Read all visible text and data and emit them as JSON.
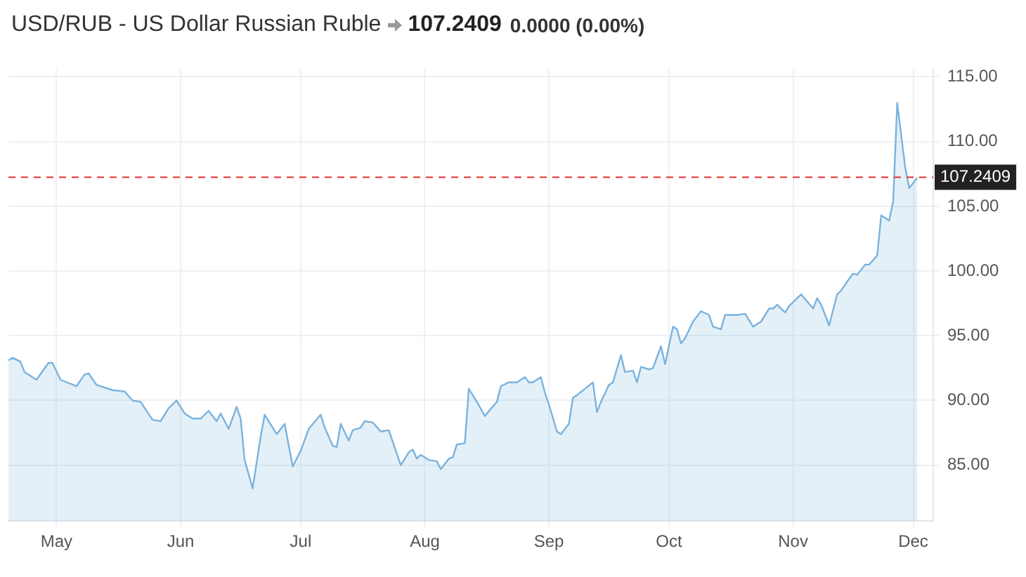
{
  "chart_data": {
    "type": "area",
    "title": "USD/RUB - US Dollar Russian Ruble",
    "annotations": [
      "107.2409",
      "0.0000 (0.00%)"
    ],
    "x": [
      "--04-19",
      "--04-20",
      "--04-22",
      "--04-23",
      "--04-26",
      "--04-29",
      "--04-30",
      "--05-02",
      "--05-06",
      "--05-08",
      "--05-09",
      "--05-11",
      "--05-15",
      "--05-18",
      "--05-20",
      "--05-22",
      "--05-25",
      "--05-27",
      "--05-29",
      "--05-31",
      "--06-02",
      "--06-04",
      "--06-06",
      "--06-08",
      "--06-10",
      "--06-11",
      "--06-13",
      "--06-15",
      "--06-16",
      "--06-17",
      "--06-19",
      "--06-21",
      "--06-22",
      "--06-24",
      "--06-25",
      "--06-27",
      "--06-29",
      "--07-01",
      "--07-03",
      "--07-06",
      "--07-07",
      "--07-09",
      "--07-10",
      "--07-11",
      "--07-13",
      "--07-14",
      "--07-16",
      "--07-17",
      "--07-19",
      "--07-21",
      "--07-23",
      "--07-26",
      "--07-28",
      "--07-29",
      "--07-30",
      "--07-31",
      "--08-02",
      "--08-04",
      "--08-05",
      "--08-07",
      "--08-08",
      "--08-09",
      "--08-11",
      "--08-12",
      "--08-13",
      "--08-14",
      "--08-16",
      "--08-19",
      "--08-20",
      "--08-22",
      "--08-24",
      "--08-26",
      "--08-27",
      "--08-28",
      "--08-30",
      "--08-31",
      "--09-01",
      "--09-03",
      "--09-04",
      "--09-06",
      "--09-07",
      "--09-08",
      "--09-12",
      "--09-13",
      "--09-14",
      "--09-16",
      "--09-17",
      "--09-19",
      "--09-20",
      "--09-22",
      "--09-23",
      "--09-24",
      "--09-26",
      "--09-27",
      "--09-29",
      "--09-30",
      "--10-02",
      "--10-03",
      "--10-04",
      "--10-05",
      "--10-07",
      "--10-09",
      "--10-11",
      "--10-12",
      "--10-14",
      "--10-15",
      "--10-18",
      "--10-20",
      "--10-22",
      "--10-24",
      "--10-26",
      "--10-27",
      "--10-28",
      "--10-30",
      "--10-31",
      "--11-03",
      "--11-06",
      "--11-07",
      "--11-08",
      "--11-10",
      "--11-12",
      "--11-13",
      "--11-15",
      "--11-16",
      "--11-17",
      "--11-19",
      "--11-20",
      "--11-22",
      "--11-23",
      "--11-25",
      "--11-26",
      "--11-27",
      "--11-29",
      "--11-30",
      "--12-02"
    ],
    "series": [
      {
        "color": "#7ab3de",
        "values": [
          93.1,
          93.3,
          93.0,
          92.2,
          91.6,
          92.9,
          92.9,
          91.6,
          91.1,
          92.0,
          92.1,
          91.2,
          90.8,
          90.7,
          90.0,
          89.9,
          88.5,
          88.4,
          89.4,
          90.0,
          89.0,
          88.6,
          88.6,
          89.2,
          88.4,
          89.0,
          87.8,
          89.5,
          88.6,
          85.4,
          83.2,
          87.2,
          88.9,
          87.9,
          87.4,
          88.2,
          84.9,
          86.1,
          87.8,
          88.9,
          87.9,
          86.5,
          86.4,
          88.2,
          86.9,
          87.7,
          87.9,
          88.4,
          88.3,
          87.6,
          87.7,
          85.0,
          86.0,
          86.2,
          85.5,
          85.8,
          85.4,
          85.3,
          84.7,
          85.5,
          85.6,
          86.6,
          86.7,
          90.9,
          90.4,
          89.9,
          88.8,
          89.9,
          91.1,
          91.4,
          91.4,
          91.8,
          91.4,
          91.4,
          91.8,
          90.6,
          89.7,
          87.6,
          87.4,
          88.2,
          90.2,
          90.4,
          91.4,
          89.1,
          89.9,
          91.2,
          91.4,
          93.5,
          92.2,
          92.3,
          91.4,
          92.6,
          92.4,
          92.5,
          94.2,
          92.8,
          95.7,
          95.5,
          94.4,
          94.8,
          96.1,
          96.9,
          96.6,
          95.7,
          95.5,
          96.6,
          96.6,
          96.7,
          95.7,
          96.1,
          97.1,
          97.1,
          97.4,
          96.8,
          97.3,
          98.2,
          97.1,
          97.9,
          97.4,
          95.8,
          98.2,
          98.5,
          99.4,
          99.8,
          99.7,
          100.5,
          100.5,
          101.2,
          104.3,
          103.9,
          105.4,
          113.0,
          108.0,
          106.4,
          107.2
        ]
      }
    ],
    "xlim": [
      "--04-19",
      "--12-06"
    ],
    "xticks": [
      {
        "value": "--05-01",
        "label": "May"
      },
      {
        "value": "--06-01",
        "label": "Jun"
      },
      {
        "value": "--07-01",
        "label": "Jul"
      },
      {
        "value": "--08-01",
        "label": "Aug"
      },
      {
        "value": "--09-01",
        "label": "Sep"
      },
      {
        "value": "--10-01",
        "label": "Oct"
      },
      {
        "value": "--11-01",
        "label": "Nov"
      },
      {
        "value": "--12-01",
        "label": "Dec"
      }
    ],
    "ylim": [
      80.7,
      115.6
    ],
    "yticks": [
      {
        "value": 85,
        "label": "85.00"
      },
      {
        "value": 90,
        "label": "90.00"
      },
      {
        "value": 95,
        "label": "95.00"
      },
      {
        "value": 100,
        "label": "100.00"
      },
      {
        "value": 105,
        "label": "105.00"
      },
      {
        "value": 110,
        "label": "110.00"
      },
      {
        "value": 115,
        "label": "115.00"
      }
    ],
    "ref_lines": [
      {
        "axis": "y",
        "value": 107.2409,
        "label": "107.2409",
        "color": "#e03030",
        "line_style": "dashed"
      }
    ],
    "grid": true,
    "marker": "none",
    "legend": false
  }
}
